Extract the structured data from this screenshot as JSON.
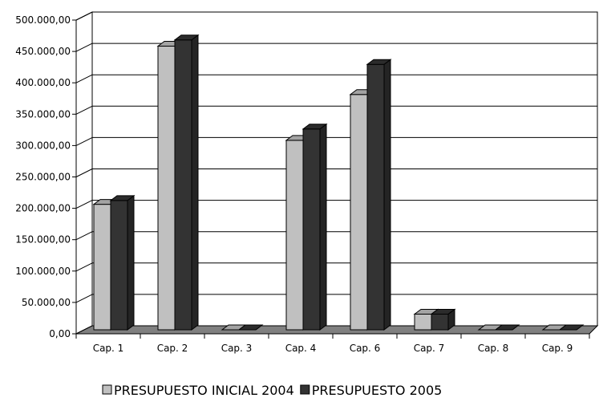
{
  "chart_data": {
    "type": "bar",
    "categories": [
      "Cap. 1",
      "Cap. 2",
      "Cap. 3",
      "Cap. 4",
      "Cap. 6",
      "Cap. 7",
      "Cap. 8",
      "Cap. 9"
    ],
    "series": [
      {
        "name": "PRESUPUESTO INICIAL 2004",
        "color": "#c0c0c0",
        "values": [
          200000,
          452000,
          0,
          302000,
          375000,
          25000,
          0,
          0
        ]
      },
      {
        "name": "PRESUPUESTO 2005",
        "color": "#333333",
        "values": [
          206000,
          462000,
          0,
          320000,
          423000,
          25000,
          0,
          0
        ]
      }
    ],
    "yticks": [
      "0,00",
      "50.000,00",
      "100.000,00",
      "150.000,00",
      "200.000,00",
      "250.000,00",
      "300.000,00",
      "350.000,00",
      "400.000,00",
      "450.000,00",
      "500.000,00"
    ],
    "ylim": [
      0,
      500000
    ],
    "grid": true,
    "legend_position": "bottom",
    "title": "",
    "xlabel": "",
    "ylabel": ""
  }
}
